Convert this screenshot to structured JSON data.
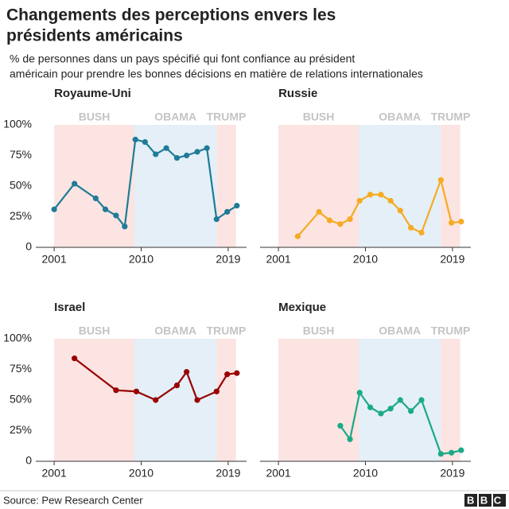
{
  "title": [
    "Changements des perceptions envers les",
    "présidents américains"
  ],
  "subtitle": [
    "% de personnes dans un pays spécifié qui font confiance au président",
    "américain pour prendre les bonnes décisions en matière de relations internationales"
  ],
  "source": "Source: Pew Research Center",
  "logo": "BBC",
  "eras": [
    {
      "label": "BUSH",
      "start": 2001,
      "end": 2009.3,
      "color": "#fbe4e2"
    },
    {
      "label": "OBAMA",
      "start": 2009.3,
      "end": 2017.8,
      "color": "#e4eff7"
    },
    {
      "label": "TRUMP",
      "start": 2017.8,
      "end": 2019.8,
      "color": "#fbe4e2"
    }
  ],
  "chart_data": [
    {
      "type": "line",
      "title": "Royaume-Uni",
      "color": "#1f7b98",
      "x": [
        2001.0,
        2003.1,
        2005.3,
        2006.3,
        2007.4,
        2008.3,
        2009.4,
        2010.4,
        2011.5,
        2012.6,
        2013.7,
        2014.7,
        2015.8,
        2016.8,
        2017.8,
        2018.9,
        2019.9
      ],
      "values": [
        31,
        52,
        40,
        31,
        26,
        17,
        88,
        86,
        76,
        81,
        73,
        75,
        78,
        81,
        23,
        29,
        34
      ],
      "xlim": [
        1999.1,
        2020.9
      ],
      "xticks": [
        2001,
        2010,
        2019
      ],
      "ylim": [
        0,
        100
      ],
      "yticks": [
        {
          "value": 0,
          "label": "0"
        },
        {
          "value": 25,
          "label": "25%"
        },
        {
          "value": 50,
          "label": "50%"
        },
        {
          "value": 75,
          "label": "75%"
        },
        {
          "value": 100,
          "label": "100%"
        }
      ]
    },
    {
      "type": "line",
      "title": "Russie",
      "color": "#f5ab22",
      "x": [
        2003.0,
        2005.2,
        2006.3,
        2007.4,
        2008.4,
        2009.4,
        2010.5,
        2011.6,
        2012.6,
        2013.6,
        2014.7,
        2015.8,
        2017.8,
        2018.9,
        2019.9
      ],
      "values": [
        9,
        29,
        22,
        19,
        23,
        38,
        43,
        43,
        38,
        30,
        16,
        12,
        55,
        20,
        21
      ],
      "xlim": [
        1999.1,
        2020.9
      ],
      "xticks": [
        2001,
        2010,
        2019
      ],
      "ylim": [
        0,
        100
      ]
    },
    {
      "type": "line",
      "title": "Israel",
      "color": "#990000",
      "x": [
        2003.1,
        2007.4,
        2009.5,
        2011.5,
        2013.7,
        2014.7,
        2015.8,
        2017.8,
        2018.9,
        2019.9
      ],
      "values": [
        84,
        58,
        57,
        50,
        62,
        73,
        50,
        57,
        71,
        72
      ],
      "xlim": [
        1999.1,
        2020.9
      ],
      "xticks": [
        2001,
        2010,
        2019
      ],
      "ylim": [
        0,
        100
      ],
      "yticks": [
        {
          "value": 0,
          "label": "0"
        },
        {
          "value": 25,
          "label": "25%"
        },
        {
          "value": 50,
          "label": "50%"
        },
        {
          "value": 75,
          "label": "75%"
        },
        {
          "value": 100,
          "label": "100%"
        }
      ]
    },
    {
      "type": "line",
      "title": "Mexique",
      "color": "#1aaa86",
      "x": [
        2007.4,
        2008.4,
        2009.4,
        2010.5,
        2011.6,
        2012.6,
        2013.6,
        2014.7,
        2015.8,
        2017.8,
        2018.9,
        2019.9
      ],
      "values": [
        29,
        18,
        56,
        44,
        39,
        43,
        50,
        41,
        50,
        6,
        7,
        9
      ],
      "xlim": [
        1999.1,
        2020.9
      ],
      "xticks": [
        2001,
        2010,
        2019
      ],
      "ylim": [
        0,
        100
      ]
    }
  ]
}
